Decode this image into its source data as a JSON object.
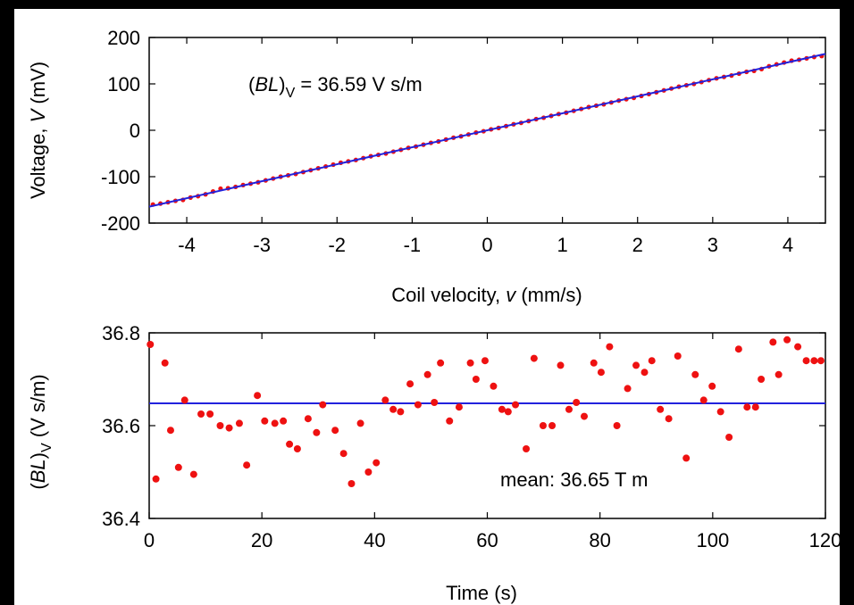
{
  "chart_data": [
    {
      "type": "scatter",
      "xlabel_prefix": "Coil velocity, ",
      "xlabel_var": "v",
      "xlabel_suffix": " (mm/s)",
      "ylabel_prefix": "Voltage, ",
      "ylabel_var": "V",
      "ylabel_suffix": " (mV)",
      "annotation": {
        "pre": "(",
        "italic": "BL",
        "post": ")",
        "sub": "V",
        "rest": " = 36.59 V s/m"
      },
      "xlim": [
        -4.5,
        4.5
      ],
      "ylim": [
        -200,
        200
      ],
      "x_ticks": [
        -4,
        -3,
        -2,
        -1,
        0,
        1,
        2,
        3,
        4
      ],
      "y_ticks": [
        -200,
        -100,
        0,
        100,
        200
      ],
      "x_tick_labels": [
        "-4",
        "-3",
        "-2",
        "-1",
        "0",
        "1",
        "2",
        "3",
        "4"
      ],
      "y_tick_labels": [
        "-200",
        "-100",
        "0",
        "100",
        "200"
      ],
      "fit_line": {
        "slope": 36.59,
        "intercept": 0,
        "color": "#2222dd"
      },
      "point_color": "#ee1111",
      "series": [
        {
          "x": [
            -4.45,
            -4.35,
            -4.25,
            -4.15,
            -4.05,
            -3.95,
            -3.85,
            -3.75,
            -3.65,
            -3.55,
            -3.45,
            -3.35,
            -3.25,
            -3.15,
            -3.05,
            -2.95,
            -2.85,
            -2.75,
            -2.65,
            -2.55,
            -2.45,
            -2.35,
            -2.25,
            -2.15,
            -2.05,
            -1.95,
            -1.85,
            -1.75,
            -1.65,
            -1.55,
            -1.45,
            -1.35,
            -1.25,
            -1.15,
            -1.05,
            -0.95,
            -0.85,
            -0.75,
            -0.65,
            -0.55,
            -0.45,
            -0.35,
            -0.25,
            -0.15,
            -0.05,
            0.05,
            0.15,
            0.25,
            0.35,
            0.45,
            0.55,
            0.65,
            0.75,
            0.85,
            0.95,
            1.05,
            1.15,
            1.25,
            1.35,
            1.45,
            1.55,
            1.65,
            1.75,
            1.85,
            1.95,
            2.05,
            2.15,
            2.25,
            2.35,
            2.45,
            2.55,
            2.65,
            2.75,
            2.85,
            2.95,
            3.05,
            3.15,
            3.25,
            3.35,
            3.45,
            3.55,
            3.65,
            3.75,
            3.85,
            3.95,
            4.05,
            4.15,
            4.25,
            4.35,
            4.45
          ],
          "y": [
            -160,
            -158,
            -155,
            -152,
            -150,
            -145,
            -142,
            -138,
            -132,
            -126,
            -125,
            -122,
            -118,
            -115,
            -112,
            -108,
            -104,
            -100,
            -97,
            -94,
            -90,
            -86,
            -82,
            -78,
            -74,
            -70,
            -67,
            -64,
            -60,
            -56,
            -53,
            -50,
            -46,
            -42,
            -38,
            -35,
            -31,
            -27,
            -24,
            -20,
            -16,
            -13,
            -9,
            -5,
            -2,
            2,
            5,
            9,
            13,
            16,
            20,
            24,
            27,
            31,
            35,
            38,
            42,
            46,
            50,
            53,
            56,
            60,
            64,
            67,
            70,
            74,
            78,
            82,
            86,
            90,
            94,
            97,
            100,
            104,
            108,
            112,
            115,
            118,
            122,
            126,
            128,
            132,
            138,
            142,
            146,
            150,
            152,
            155,
            158,
            160
          ]
        }
      ]
    },
    {
      "type": "scatter",
      "xlabel": "Time  (s)",
      "ylabel": {
        "pre": "(",
        "italic": "BL",
        "post": ")",
        "sub": "V",
        "rest": " (V s/m)"
      },
      "annotation": "mean: 36.65 T m",
      "xlim": [
        0,
        120
      ],
      "ylim": [
        36.4,
        36.8
      ],
      "x_ticks": [
        0,
        20,
        40,
        60,
        80,
        100,
        120
      ],
      "y_ticks": [
        36.4,
        36.6,
        36.8
      ],
      "x_tick_labels": [
        "0",
        "20",
        "40",
        "60",
        "80",
        "100",
        "120"
      ],
      "y_tick_labels": [
        "36.4",
        "36.6",
        "36.8"
      ],
      "mean_line": {
        "y": 36.648,
        "color": "#2222dd"
      },
      "point_color": "#ee1111",
      "series": [
        {
          "x": [
            0.2,
            1.2,
            2.8,
            3.8,
            5.2,
            6.3,
            7.9,
            9.2,
            10.8,
            12.6,
            14.2,
            16.0,
            17.3,
            19.2,
            20.5,
            22.3,
            23.8,
            24.9,
            26.3,
            28.2,
            29.7,
            30.8,
            33.0,
            34.5,
            35.9,
            37.5,
            38.9,
            40.3,
            41.9,
            43.3,
            44.6,
            46.3,
            47.7,
            49.4,
            50.6,
            51.7,
            53.3,
            55.0,
            57.0,
            58.0,
            59.6,
            61.1,
            62.6,
            63.7,
            65.0,
            66.9,
            68.3,
            69.9,
            71.5,
            73.0,
            74.5,
            75.8,
            77.2,
            78.9,
            80.2,
            81.7,
            83.0,
            84.9,
            86.4,
            87.9,
            89.2,
            90.7,
            92.2,
            93.8,
            95.3,
            96.9,
            98.4,
            99.9,
            101.4,
            102.9,
            104.6,
            106.1,
            107.6,
            108.6,
            110.7,
            111.7,
            113.2,
            115.1,
            116.6,
            118.0,
            119.2
          ],
          "y": [
            36.775,
            36.485,
            36.735,
            36.59,
            36.51,
            36.655,
            36.495,
            36.625,
            36.625,
            36.6,
            36.595,
            36.605,
            36.515,
            36.665,
            36.61,
            36.605,
            36.61,
            36.56,
            36.55,
            36.615,
            36.585,
            36.645,
            36.59,
            36.54,
            36.475,
            36.605,
            36.5,
            36.52,
            36.655,
            36.635,
            36.63,
            36.69,
            36.645,
            36.71,
            36.65,
            36.735,
            36.61,
            36.64,
            36.735,
            36.7,
            36.74,
            36.685,
            36.635,
            36.63,
            36.645,
            36.55,
            36.745,
            36.6,
            36.6,
            36.73,
            36.635,
            36.65,
            36.62,
            36.735,
            36.715,
            36.77,
            36.6,
            36.68,
            36.73,
            36.715,
            36.74,
            36.635,
            36.615,
            36.75,
            36.53,
            36.71,
            36.655,
            36.685,
            36.63,
            36.575,
            36.765,
            36.64,
            36.64,
            36.7,
            36.78,
            36.71,
            36.785,
            36.77,
            36.74,
            36.74,
            36.74
          ]
        }
      ]
    }
  ]
}
